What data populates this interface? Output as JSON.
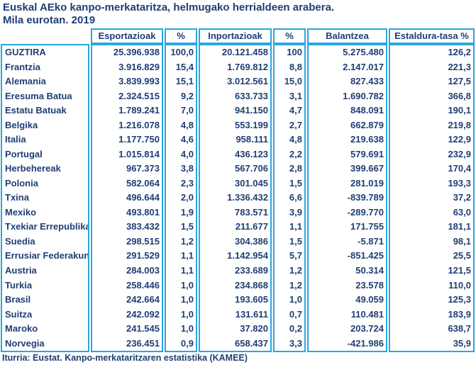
{
  "title": {
    "line1": "Euskal AEko kanpo-merkataritza, helmugako herrialdeen arabera.",
    "line2": "Mila eurotan. 2019"
  },
  "chart_data": {
    "type": "table",
    "title": "Euskal AEko kanpo-merkataritza, helmugako herrialdeen arabera. Mila eurotan. 2019",
    "columns": [
      "",
      "Esportazioak",
      "%",
      "Inportazioak",
      "%",
      "Balantzea",
      "Estaldura-tasa %"
    ],
    "rows": [
      [
        "GUZTIRA",
        "25.396.938",
        "100,0",
        "20.121.458",
        "100",
        "5.275.480",
        "126,2"
      ],
      [
        "Frantzia",
        "3.916.829",
        "15,4",
        "1.769.812",
        "8,8",
        "2.147.017",
        "221,3"
      ],
      [
        "Alemania",
        "3.839.993",
        "15,1",
        "3.012.561",
        "15,0",
        "827.433",
        "127,5"
      ],
      [
        "Eresuma Batua",
        "2.324.515",
        "9,2",
        "633.733",
        "3,1",
        "1.690.782",
        "366,8"
      ],
      [
        "Estatu Batuak",
        "1.789.241",
        "7,0",
        "941.150",
        "4,7",
        "848.091",
        "190,1"
      ],
      [
        "Belgika",
        "1.216.078",
        "4,8",
        "553.199",
        "2,7",
        "662.879",
        "219,8"
      ],
      [
        "Italia",
        "1.177.750",
        "4,6",
        "958.111",
        "4,8",
        "219.638",
        "122,9"
      ],
      [
        "Portugal",
        "1.015.814",
        "4,0",
        "436.123",
        "2,2",
        "579.691",
        "232,9"
      ],
      [
        "Herbehereak",
        "967.373",
        "3,8",
        "567.706",
        "2,8",
        "399.667",
        "170,4"
      ],
      [
        "Polonia",
        "582.064",
        "2,3",
        "301.045",
        "1,5",
        "281.019",
        "193,3"
      ],
      [
        "Txina",
        "496.644",
        "2,0",
        "1.336.432",
        "6,6",
        "-839.789",
        "37,2"
      ],
      [
        "Mexiko",
        "493.801",
        "1,9",
        "783.571",
        "3,9",
        "-289.770",
        "63,0"
      ],
      [
        "Txekiar Errepublika",
        "383.432",
        "1,5",
        "211.677",
        "1,1",
        "171.755",
        "181,1"
      ],
      [
        "Suedia",
        "298.515",
        "1,2",
        "304.386",
        "1,5",
        "-5.871",
        "98,1"
      ],
      [
        "Errusiar Federakuntza",
        "291.529",
        "1,1",
        "1.142.954",
        "5,7",
        "-851.425",
        "25,5"
      ],
      [
        "Austria",
        "284.003",
        "1,1",
        "233.689",
        "1,2",
        "50.314",
        "121,5"
      ],
      [
        "Turkia",
        "258.446",
        "1,0",
        "234.868",
        "1,2",
        "23.578",
        "110,0"
      ],
      [
        "Brasil",
        "242.664",
        "1,0",
        "193.605",
        "1,0",
        "49.059",
        "125,3"
      ],
      [
        "Suitza",
        "242.092",
        "1,0",
        "131.611",
        "0,7",
        "110.481",
        "183,9"
      ],
      [
        "Maroko",
        "241.545",
        "1,0",
        "37.820",
        "0,2",
        "203.724",
        "638,7"
      ],
      [
        "Norvegia",
        "236.451",
        "0,9",
        "658.437",
        "3,3",
        "-421.986",
        "35,9"
      ]
    ],
    "layout": {
      "grid": "cyan column boxes, no inner horizontal lines",
      "legend_position": "none"
    }
  },
  "footer": {
    "source": "Iturria: Eustat. Kanpo-merkataritzaren estatistika (KAMEE)"
  },
  "colors": {
    "text_navy": "#1f3e74",
    "border_cyan": "#2aa7de",
    "background": "#ffffff"
  }
}
